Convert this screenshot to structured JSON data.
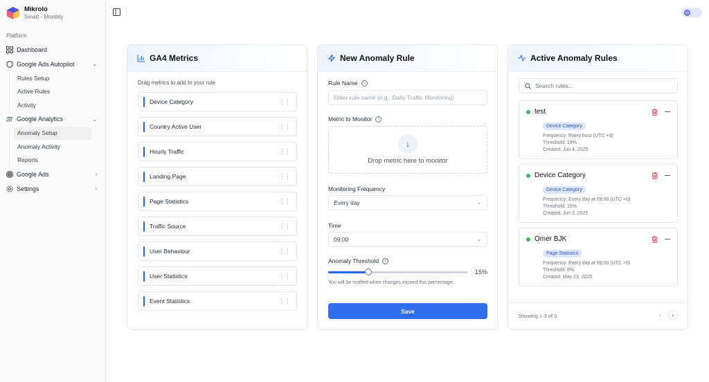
{
  "brand": {
    "name": "Mikrolo",
    "plan": "Smart - Monthly"
  },
  "sidebar": {
    "section": "Platform",
    "items": [
      {
        "label": "Dashboard",
        "icon": "grid-icon"
      },
      {
        "label": "Google Ads Autopilot",
        "icon": "shield-icon",
        "expanded": true,
        "children": [
          "Rules Setup",
          "Active Rules",
          "Activity"
        ]
      },
      {
        "label": "Google Analytics",
        "icon": "chart-icon",
        "expanded": true,
        "children": [
          "Anomaly Setup",
          "Anomaly Activity",
          "Reports"
        ],
        "active_child": "Anomaly Setup"
      },
      {
        "label": "Google Ads",
        "icon": "target-icon"
      },
      {
        "label": "Settings",
        "icon": "gear-icon"
      }
    ]
  },
  "metrics_card": {
    "title": "GA4 Metrics",
    "hint": "Drag metrics to add to your rule",
    "items": [
      "Device Category",
      "Country Active User",
      "Hourly Traffic",
      "Landing Page",
      "Page Statistics",
      "Traffic Source",
      "User Behaviour",
      "User Statistics",
      "Event Statistics"
    ]
  },
  "new_rule": {
    "title": "New Anomaly Rule",
    "rule_name_label": "Rule Name",
    "rule_name_placeholder": "Enter rule name (e.g., Daily Traffic Monitoring)",
    "metric_label": "Metric to Monitor",
    "drop_text": "Drop metric here to monitor",
    "frequency_label": "Monitoring Frequency",
    "frequency_value": "Every day",
    "time_label": "Time",
    "time_value": "09:00",
    "threshold_label": "Anomaly Threshold",
    "threshold_value": 15,
    "threshold_text": "15%",
    "threshold_note": "You will be notified when changes exceed this percentage.",
    "save_label": "Save"
  },
  "active_rules": {
    "title": "Active Anomaly Rules",
    "search_placeholder": "Search rules...",
    "rules": [
      {
        "name": "test",
        "metric": "Device Category",
        "frequency": "Frequency: Every hour (UTC +0)",
        "threshold": "Threshold: 19%",
        "created": "Created: Jun 4, 2025"
      },
      {
        "name": "Device Category",
        "metric": "Device Category",
        "frequency": "Frequency: Every day at 09:00 (UTC +0)",
        "threshold": "Threshold: 15%",
        "created": "Created: Jun 3, 2025"
      },
      {
        "name": "Omer BJK",
        "metric": "Page Statistics",
        "frequency": "Frequency: Every day at 09:00 (UTC +0)",
        "threshold": "Threshold: 8%",
        "created": "Created: May 23, 2025"
      }
    ],
    "showing": "Showing 1-3 of 5"
  },
  "colors": {
    "accent": "#2f6fed",
    "active_dot": "#3fb950",
    "delete": "#e05252"
  }
}
